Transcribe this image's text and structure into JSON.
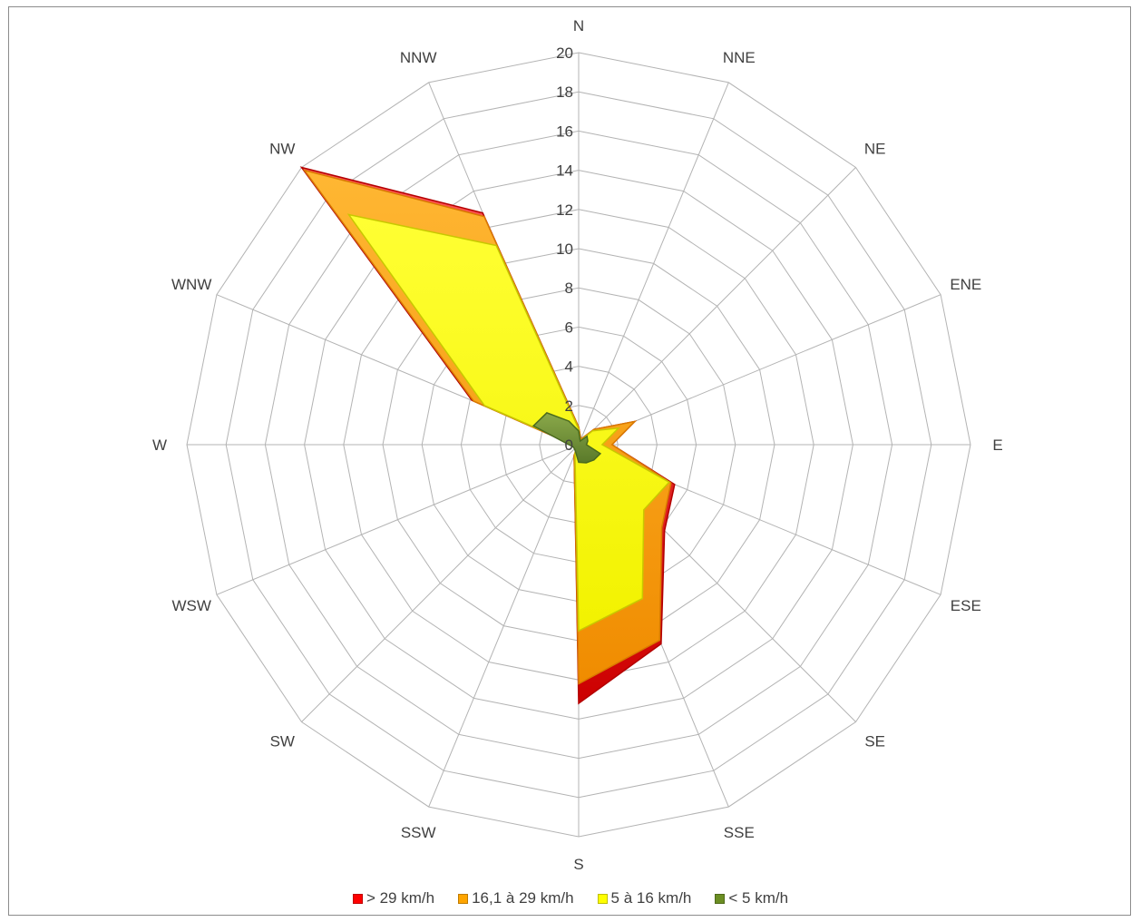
{
  "chart_data": {
    "type": "radar",
    "stacked": true,
    "directions": [
      "N",
      "NNE",
      "NE",
      "ENE",
      "E",
      "ESE",
      "SE",
      "SSE",
      "S",
      "SSW",
      "SW",
      "WSW",
      "W",
      "WNW",
      "NW",
      "NNW"
    ],
    "rlim": [
      0,
      20
    ],
    "rticks": [
      "0",
      "2",
      "4",
      "6",
      "8",
      "10",
      "12",
      "14",
      "16",
      "18",
      "20"
    ],
    "grid": true,
    "legend_position": "bottom",
    "series": [
      {
        "name": "> 29 km/h",
        "color": "#ff0000",
        "values": [
          0.9,
          0.3,
          1.1,
          3.1,
          1.7,
          5.3,
          6.2,
          11.0,
          13.2,
          0.6,
          0.1,
          0.1,
          0.3,
          5.9,
          20.0,
          12.8
        ]
      },
      {
        "name": "16,1 à 29 km/h",
        "color": "#ffa500",
        "values": [
          0.9,
          0.3,
          1.1,
          3.1,
          1.7,
          5.1,
          6.0,
          10.8,
          12.2,
          0.6,
          0.1,
          0.1,
          0.3,
          5.8,
          19.8,
          12.6
        ]
      },
      {
        "name": "5 à 16 km/h",
        "color": "#ffff00",
        "values": [
          0.8,
          0.2,
          1.0,
          2.2,
          1.2,
          5.0,
          4.7,
          8.5,
          9.5,
          0.5,
          0.1,
          0.1,
          0.2,
          5.2,
          16.6,
          11.0
        ]
      },
      {
        "name": "< 5 km/h",
        "color": "#6b8e23",
        "values": [
          0.7,
          0.2,
          0.6,
          0.5,
          0.4,
          1.2,
          1.1,
          1.0,
          0.9,
          0.4,
          0.3,
          0.3,
          0.5,
          2.5,
          2.3,
          1.3
        ]
      }
    ]
  }
}
